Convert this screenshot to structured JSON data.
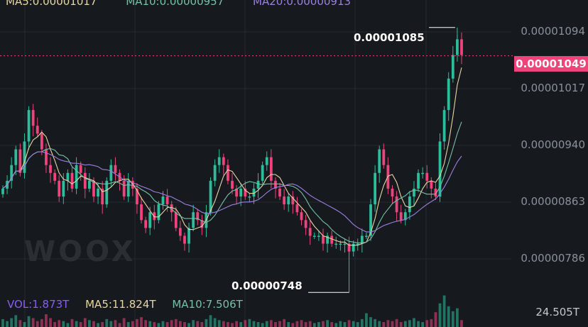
{
  "legend": {
    "ma5": "MA5:0.00001017",
    "ma10": "MA10:0.00000957",
    "ma20": "MA20:0.00000913"
  },
  "watermark": "WOOX",
  "price_axis": [
    "0.00001094",
    "0.00001017",
    "0.00000940",
    "0.00000863",
    "0.00000786"
  ],
  "current_price": "0.00001049",
  "high_label": "0.00001085",
  "low_label": "0.00000748",
  "volume": {
    "vol": "VOL:1.873T",
    "ma5": "MA5:11.824T",
    "ma10": "MA10:7.506T",
    "axis_label": "24.505T"
  },
  "colors": {
    "background": "#161a1e",
    "up": "#2ebd9b",
    "down": "#f0437c",
    "ma5": "#e8d5a3",
    "ma10": "#75c0a6",
    "ma20": "#9d7fe0",
    "vol_label": "#8b5cf6",
    "grid": "#262a31"
  },
  "chart_data": {
    "type": "candlestick",
    "ylim": [
      7.5e-06,
      1.12e-05
    ],
    "current": 1.049e-05,
    "high": 1.085e-05,
    "low": 7.48e-06,
    "closes": [
      8.8e-06,
      8.9e-06,
      9.1e-06,
      9.3e-06,
      9e-06,
      9.4e-06,
      9.8e-06,
      9.6e-06,
      9.5e-06,
      9.3e-06,
      9.1e-06,
      9e-06,
      8.9e-06,
      8.7e-06,
      8.9e-06,
      9e-06,
      8.8e-06,
      9.1e-06,
      9e-06,
      8.8e-06,
      8.9e-06,
      8.7e-06,
      8.8e-06,
      8.6e-06,
      8.9e-06,
      9.1e-06,
      9e-06,
      8.9e-06,
      8.7e-06,
      8.9e-06,
      8.8e-06,
      8.6e-06,
      8.4e-06,
      8.3e-06,
      8.5e-06,
      8.4e-06,
      8.6e-06,
      8.7e-06,
      8.6e-06,
      8.5e-06,
      8.3e-06,
      8.2e-06,
      8.1e-06,
      8.3e-06,
      8.5e-06,
      8.4e-06,
      8.3e-06,
      8.5e-06,
      8.9e-06,
      9.1e-06,
      9.2e-06,
      9.1e-06,
      8.9e-06,
      8.8e-06,
      8.7e-06,
      8.8e-06,
      8.7e-06,
      8.7e-06,
      8.8e-06,
      8.9e-06,
      9.1e-06,
      9.2e-06,
      8.9e-06,
      8.8e-06,
      8.7e-06,
      8.6e-06,
      8.7e-06,
      8.6e-06,
      8.5e-06,
      8.4e-06,
      8.3e-06,
      8.2e-06,
      8.2e-06,
      8.2e-06,
      8.1e-06,
      8.2e-06,
      8.1e-06,
      8.1e-06,
      8.1e-06,
      8.1e-06,
      8e-06,
      8.1e-06,
      8.1e-06,
      8.2e-06,
      8.2e-06,
      8.6e-06,
      9e-06,
      9.3e-06,
      9.1e-06,
      8.8e-06,
      8.7e-06,
      8.5e-06,
      8.4e-06,
      8.5e-06,
      8.7e-06,
      8.8e-06,
      9e-06,
      9e-06,
      8.9e-06,
      8.8e-06,
      8.7e-06,
      9.4e-06,
      9.8e-06,
      1.02e-05,
      1.05e-05,
      1.07e-05,
      1.05e-05
    ],
    "volumes": [
      0.8,
      0.6,
      0.9,
      1.2,
      0.7,
      0.5,
      1.1,
      0.9,
      0.6,
      0.8,
      1.3,
      0.9,
      0.5,
      0.7,
      0.6,
      0.4,
      0.8,
      0.6,
      0.5,
      0.9,
      0.7,
      0.6,
      0.4,
      0.5,
      0.8,
      0.6,
      0.7,
      0.4,
      0.9,
      0.5,
      0.6,
      0.8,
      1.0,
      0.7,
      0.6,
      0.5,
      0.4,
      0.6,
      0.5,
      0.7,
      0.8,
      0.6,
      0.5,
      0.4,
      0.7,
      0.6,
      0.5,
      0.8,
      1.2,
      0.9,
      0.7,
      0.6,
      0.5,
      0.4,
      0.6,
      0.5,
      0.7,
      0.8,
      0.6,
      0.5,
      0.4,
      0.6,
      0.7,
      0.5,
      0.6,
      0.8,
      0.5,
      0.4,
      0.6,
      0.7,
      0.5,
      0.6,
      0.4,
      0.5,
      0.6,
      0.7,
      0.5,
      0.4,
      0.6,
      0.5,
      0.7,
      0.6,
      0.5,
      0.8,
      1.4,
      1.0,
      0.8,
      0.6,
      0.5,
      0.7,
      0.6,
      0.8,
      0.5,
      0.6,
      0.7,
      0.9,
      0.6,
      0.5,
      0.7,
      0.8,
      1.5,
      2.4,
      3.2,
      2.1,
      1.6,
      1.9,
      0.7
    ]
  }
}
